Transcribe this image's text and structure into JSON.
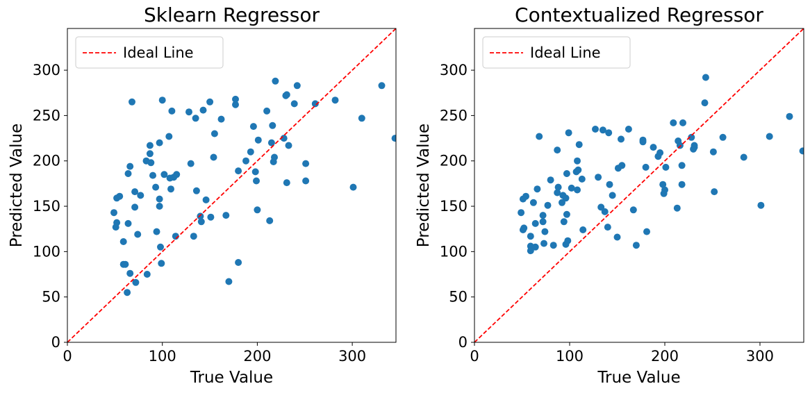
{
  "chart_data": [
    {
      "type": "scatter",
      "title": "Sklearn Regressor",
      "xlabel": "True Value",
      "ylabel": "Predicted Value",
      "xlim": [
        0,
        346
      ],
      "ylim": [
        0,
        346
      ],
      "xticks": [
        0,
        100,
        200,
        300
      ],
      "yticks": [
        0,
        50,
        100,
        150,
        200,
        250,
        300
      ],
      "grid": false,
      "legend": {
        "position": "top-left",
        "entries": [
          {
            "label": "Ideal Line",
            "style": "dashed",
            "color": "#ff0000"
          }
        ]
      },
      "reference_line": {
        "label": "Ideal Line",
        "x": [
          0,
          346
        ],
        "y": [
          0,
          346
        ],
        "color": "#ff0000"
      },
      "series": [
        {
          "color": "#1f77b4",
          "points": [
            [
              49,
              143
            ],
            [
              51,
              127
            ],
            [
              52,
              132
            ],
            [
              52,
              159
            ],
            [
              55,
              161
            ],
            [
              59,
              111
            ],
            [
              59,
              86
            ],
            [
              61,
              86
            ],
            [
              63,
              55
            ],
            [
              64,
              186
            ],
            [
              64,
              131
            ],
            [
              66,
              76
            ],
            [
              66,
              194
            ],
            [
              68,
              265
            ],
            [
              71,
              166
            ],
            [
              71,
              149
            ],
            [
              72,
              66
            ],
            [
              74,
              119
            ],
            [
              77,
              162
            ],
            [
              83,
              200
            ],
            [
              84,
              75
            ],
            [
              87,
              208
            ],
            [
              87,
              217
            ],
            [
              88,
              198
            ],
            [
              90,
              184
            ],
            [
              93,
              171
            ],
            [
              94,
              122
            ],
            [
              97,
              150
            ],
            [
              97,
              158
            ],
            [
              97,
              220
            ],
            [
              98,
              105
            ],
            [
              99,
              87
            ],
            [
              100,
              267
            ],
            [
              102,
              185
            ],
            [
              107,
              227
            ],
            [
              108,
              181
            ],
            [
              109,
              169
            ],
            [
              110,
              255
            ],
            [
              112,
              182
            ],
            [
              114,
              117
            ],
            [
              115,
              185
            ],
            [
              128,
              254
            ],
            [
              130,
              197
            ],
            [
              133,
              117
            ],
            [
              135,
              247
            ],
            [
              136,
              167
            ],
            [
              140,
              139
            ],
            [
              141,
              133
            ],
            [
              143,
              256
            ],
            [
              146,
              157
            ],
            [
              150,
              265
            ],
            [
              151,
              138
            ],
            [
              154,
              204
            ],
            [
              155,
              230
            ],
            [
              162,
              246
            ],
            [
              167,
              140
            ],
            [
              170,
              67
            ],
            [
              177,
              262
            ],
            [
              177,
              268
            ],
            [
              180,
              189
            ],
            [
              180,
              88
            ],
            [
              188,
              200
            ],
            [
              193,
              210
            ],
            [
              196,
              238
            ],
            [
              198,
              188
            ],
            [
              199,
              178
            ],
            [
              200,
              146
            ],
            [
              201,
              223
            ],
            [
              210,
              255
            ],
            [
              213,
              134
            ],
            [
              215,
              220
            ],
            [
              216,
              239
            ],
            [
              217,
              199
            ],
            [
              218,
              204
            ],
            [
              219,
              288
            ],
            [
              228,
              225
            ],
            [
              230,
              272
            ],
            [
              231,
              273
            ],
            [
              231,
              176
            ],
            [
              233,
              217
            ],
            [
              239,
              263
            ],
            [
              242,
              283
            ],
            [
              251,
              197
            ],
            [
              251,
              178
            ],
            [
              261,
              263
            ],
            [
              282,
              267
            ],
            [
              301,
              171
            ],
            [
              310,
              247
            ],
            [
              331,
              283
            ],
            [
              345,
              225
            ]
          ]
        }
      ]
    },
    {
      "type": "scatter",
      "title": "Contextualized Regressor",
      "xlabel": "True Value",
      "ylabel": "Predicted Value",
      "xlim": [
        0,
        346
      ],
      "ylim": [
        0,
        346
      ],
      "xticks": [
        0,
        100,
        200,
        300
      ],
      "yticks": [
        0,
        50,
        100,
        150,
        200,
        250,
        300
      ],
      "grid": false,
      "legend": {
        "position": "top-left",
        "entries": [
          {
            "label": "Ideal Line",
            "style": "dashed",
            "color": "#ff0000"
          }
        ]
      },
      "reference_line": {
        "label": "Ideal Line",
        "x": [
          0,
          346
        ],
        "y": [
          0,
          346
        ],
        "color": "#ff0000"
      },
      "series": [
        {
          "color": "#1f77b4",
          "points": [
            [
              49,
              143
            ],
            [
              51,
              124
            ],
            [
              51,
              158
            ],
            [
              52,
              126
            ],
            [
              54,
              161
            ],
            [
              59,
              106
            ],
            [
              59,
              101
            ],
            [
              59,
              117
            ],
            [
              62,
              154
            ],
            [
              64,
              131
            ],
            [
              64,
              105
            ],
            [
              66,
              169
            ],
            [
              68,
              227
            ],
            [
              72,
              133
            ],
            [
              72,
              140
            ],
            [
              73,
              109
            ],
            [
              74,
              122
            ],
            [
              77,
              151
            ],
            [
              80,
              179
            ],
            [
              83,
              107
            ],
            [
              87,
              165
            ],
            [
              87,
              212
            ],
            [
              88,
              171
            ],
            [
              92,
              154
            ],
            [
              93,
              162
            ],
            [
              94,
              133
            ],
            [
              96,
              108
            ],
            [
              96,
              159
            ],
            [
              97,
              186
            ],
            [
              97,
              141
            ],
            [
              98,
              112
            ],
            [
              99,
              231
            ],
            [
              102,
              170
            ],
            [
              107,
              188
            ],
            [
              108,
              200
            ],
            [
              108,
              168
            ],
            [
              110,
              218
            ],
            [
              109,
              190
            ],
            [
              113,
              180
            ],
            [
              114,
              124
            ],
            [
              127,
              235
            ],
            [
              130,
              182
            ],
            [
              133,
              149
            ],
            [
              135,
              234
            ],
            [
              137,
              144
            ],
            [
              140,
              127
            ],
            [
              141,
              231
            ],
            [
              142,
              174
            ],
            [
              145,
              162
            ],
            [
              150,
              116
            ],
            [
              151,
              192
            ],
            [
              154,
              224
            ],
            [
              155,
              195
            ],
            [
              162,
              235
            ],
            [
              167,
              146
            ],
            [
              170,
              107
            ],
            [
              177,
              223
            ],
            [
              177,
              221
            ],
            [
              180,
              193
            ],
            [
              181,
              122
            ],
            [
              188,
              215
            ],
            [
              193,
              205
            ],
            [
              195,
              209
            ],
            [
              198,
              174
            ],
            [
              199,
              164
            ],
            [
              200,
              168
            ],
            [
              201,
              193
            ],
            [
              209,
              242
            ],
            [
              213,
              148
            ],
            [
              214,
              222
            ],
            [
              216,
              217
            ],
            [
              218,
              195
            ],
            [
              218,
              174
            ],
            [
              219,
              242
            ],
            [
              228,
              226
            ],
            [
              230,
              213
            ],
            [
              231,
              217
            ],
            [
              231,
              215
            ],
            [
              242,
              264
            ],
            [
              243,
              292
            ],
            [
              251,
              210
            ],
            [
              252,
              166
            ],
            [
              261,
              226
            ],
            [
              283,
              204
            ],
            [
              301,
              151
            ],
            [
              310,
              227
            ],
            [
              331,
              249
            ],
            [
              345,
              211
            ]
          ]
        }
      ]
    }
  ]
}
